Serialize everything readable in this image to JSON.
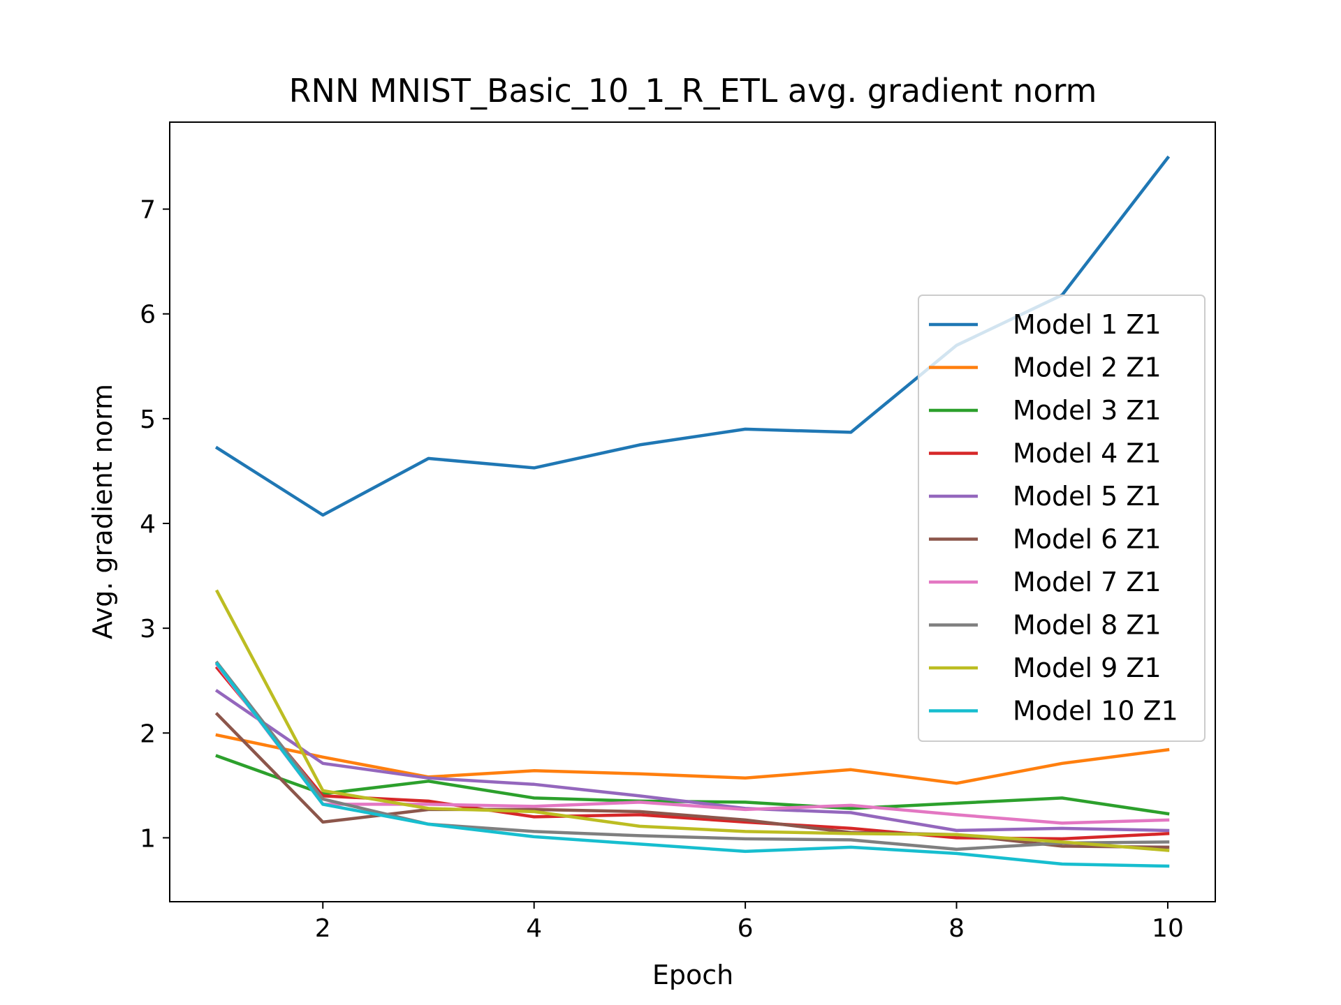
{
  "chart_data": {
    "type": "line",
    "title": "RNN MNIST_Basic_10_1_R_ETL avg. gradient norm",
    "xlabel": "Epoch",
    "ylabel": "Avg. gradient norm",
    "xlim": [
      0.55,
      10.45
    ],
    "ylim": [
      0.39,
      7.83
    ],
    "xticks": [
      2,
      4,
      6,
      8,
      10
    ],
    "yticks": [
      1,
      2,
      3,
      4,
      5,
      6,
      7
    ],
    "grid": false,
    "legend_position": "center-right",
    "x": [
      1,
      2,
      3,
      4,
      5,
      6,
      7,
      8,
      9,
      10
    ],
    "series": [
      {
        "name": "Model 1 Z1",
        "color": "#1f77b4",
        "values": [
          4.72,
          4.08,
          4.62,
          4.53,
          4.75,
          4.9,
          4.87,
          5.7,
          6.18,
          7.49
        ]
      },
      {
        "name": "Model 2 Z1",
        "color": "#ff7f0e",
        "values": [
          1.98,
          1.77,
          1.58,
          1.64,
          1.61,
          1.57,
          1.65,
          1.52,
          1.71,
          1.84
        ]
      },
      {
        "name": "Model 3 Z1",
        "color": "#2ca02c",
        "values": [
          1.78,
          1.42,
          1.54,
          1.38,
          1.35,
          1.34,
          1.28,
          1.33,
          1.38,
          1.23
        ]
      },
      {
        "name": "Model 4 Z1",
        "color": "#d62728",
        "values": [
          2.62,
          1.4,
          1.35,
          1.2,
          1.22,
          1.15,
          1.09,
          1.0,
          0.99,
          1.04
        ]
      },
      {
        "name": "Model 5 Z1",
        "color": "#9467bd",
        "values": [
          2.4,
          1.71,
          1.57,
          1.51,
          1.4,
          1.28,
          1.24,
          1.07,
          1.09,
          1.07
        ]
      },
      {
        "name": "Model 6 Z1",
        "color": "#8c564b",
        "values": [
          2.18,
          1.15,
          1.27,
          1.27,
          1.25,
          1.17,
          1.05,
          1.03,
          0.92,
          0.91
        ]
      },
      {
        "name": "Model 7 Z1",
        "color": "#e377c2",
        "values": [
          2.65,
          1.32,
          1.32,
          1.3,
          1.34,
          1.27,
          1.31,
          1.22,
          1.14,
          1.17
        ]
      },
      {
        "name": "Model 8 Z1",
        "color": "#7f7f7f",
        "values": [
          2.67,
          1.37,
          1.13,
          1.06,
          1.02,
          0.99,
          0.98,
          0.89,
          0.95,
          0.96
        ]
      },
      {
        "name": "Model 9 Z1",
        "color": "#bcbd22",
        "values": [
          3.35,
          1.45,
          1.28,
          1.25,
          1.11,
          1.06,
          1.04,
          1.03,
          0.96,
          0.88
        ]
      },
      {
        "name": "Model 10 Z1",
        "color": "#17becf",
        "values": [
          2.66,
          1.32,
          1.13,
          1.01,
          0.94,
          0.87,
          0.91,
          0.85,
          0.75,
          0.73
        ]
      }
    ]
  }
}
